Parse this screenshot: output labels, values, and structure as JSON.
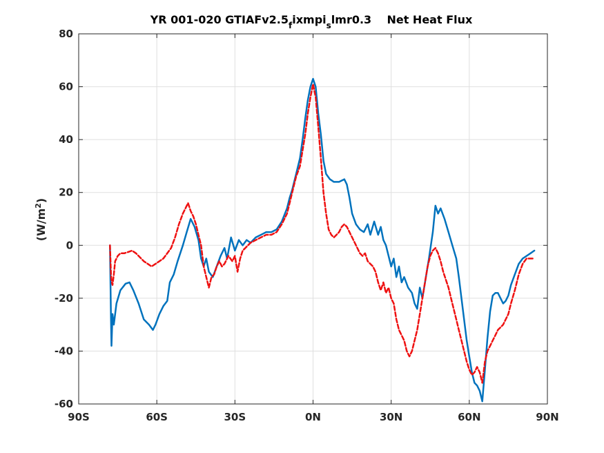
{
  "chart_data": {
    "type": "line",
    "title": {
      "prefix": "YR 001-020 GTIAFv2.5",
      "sub1": "f",
      "mid": "ixmpi",
      "sub2": "s",
      "suffix": "lmr0.3",
      "right": "Net Heat Flux"
    },
    "ylabel": {
      "main": "(W/m",
      "sup": "2",
      "close": ")"
    },
    "xlim": [
      -90,
      90
    ],
    "ylim": [
      -60,
      80
    ],
    "xticks": [
      {
        "value": -90,
        "label": "90S"
      },
      {
        "value": -60,
        "label": "60S"
      },
      {
        "value": -30,
        "label": "30S"
      },
      {
        "value": 0,
        "label": "0N"
      },
      {
        "value": 30,
        "label": "30N"
      },
      {
        "value": 60,
        "label": "60N"
      },
      {
        "value": 90,
        "label": "90N"
      }
    ],
    "yticks": [
      {
        "value": -60,
        "label": "-60"
      },
      {
        "value": -40,
        "label": "-40"
      },
      {
        "value": -20,
        "label": "-20"
      },
      {
        "value": 0,
        "label": "0"
      },
      {
        "value": 20,
        "label": "20"
      },
      {
        "value": 40,
        "label": "40"
      },
      {
        "value": 60,
        "label": "60"
      },
      {
        "value": 80,
        "label": "80"
      }
    ],
    "grid": true,
    "series": [
      {
        "color": "#0072BD",
        "style": "solid",
        "points": [
          [
            -78,
            0
          ],
          [
            -77.6,
            -28
          ],
          [
            -77.4,
            -38
          ],
          [
            -77,
            -26
          ],
          [
            -76.5,
            -30
          ],
          [
            -75.5,
            -22
          ],
          [
            -74,
            -17
          ],
          [
            -72,
            -14.5
          ],
          [
            -70.5,
            -14
          ],
          [
            -69,
            -17
          ],
          [
            -67,
            -22
          ],
          [
            -65,
            -28
          ],
          [
            -63,
            -30
          ],
          [
            -61.5,
            -32
          ],
          [
            -60.5,
            -30
          ],
          [
            -59,
            -26
          ],
          [
            -57.5,
            -23
          ],
          [
            -56,
            -21
          ],
          [
            -55,
            -14
          ],
          [
            -53.5,
            -11
          ],
          [
            -52,
            -6
          ],
          [
            -51,
            -3
          ],
          [
            -50,
            0
          ],
          [
            -48.5,
            5
          ],
          [
            -47,
            10
          ],
          [
            -45.5,
            7
          ],
          [
            -44,
            2
          ],
          [
            -43,
            -5
          ],
          [
            -42,
            -8
          ],
          [
            -41,
            -5
          ],
          [
            -40,
            -10
          ],
          [
            -38.5,
            -12
          ],
          [
            -37,
            -8
          ],
          [
            -35.5,
            -4
          ],
          [
            -34,
            -1
          ],
          [
            -33,
            -5
          ],
          [
            -31.5,
            3
          ],
          [
            -30,
            -2
          ],
          [
            -28.5,
            2
          ],
          [
            -27,
            0
          ],
          [
            -25.5,
            2
          ],
          [
            -24,
            1
          ],
          [
            -22,
            3
          ],
          [
            -20,
            4
          ],
          [
            -18,
            5
          ],
          [
            -16,
            5
          ],
          [
            -14,
            6
          ],
          [
            -12,
            9
          ],
          [
            -10,
            14
          ],
          [
            -9,
            18
          ],
          [
            -8,
            21
          ],
          [
            -6.5,
            27
          ],
          [
            -5,
            33
          ],
          [
            -4,
            40
          ],
          [
            -3,
            48
          ],
          [
            -2,
            55
          ],
          [
            -1,
            60
          ],
          [
            0,
            63
          ],
          [
            1,
            60
          ],
          [
            2,
            50
          ],
          [
            3,
            42
          ],
          [
            4,
            32
          ],
          [
            5,
            27
          ],
          [
            6.5,
            25
          ],
          [
            8,
            24
          ],
          [
            10,
            24
          ],
          [
            12,
            25
          ],
          [
            13,
            23
          ],
          [
            14,
            18
          ],
          [
            15,
            12
          ],
          [
            16.5,
            8
          ],
          [
            18,
            6
          ],
          [
            19.5,
            5
          ],
          [
            21,
            8
          ],
          [
            22,
            4
          ],
          [
            23.5,
            9
          ],
          [
            25,
            4
          ],
          [
            26,
            7
          ],
          [
            27,
            2
          ],
          [
            28,
            0
          ],
          [
            29,
            -4
          ],
          [
            30,
            -8
          ],
          [
            31,
            -5
          ],
          [
            32,
            -12
          ],
          [
            33,
            -8
          ],
          [
            34,
            -14
          ],
          [
            35,
            -12
          ],
          [
            36.5,
            -16
          ],
          [
            38,
            -18
          ],
          [
            39,
            -22
          ],
          [
            40,
            -24
          ],
          [
            41,
            -16
          ],
          [
            42,
            -20
          ],
          [
            43,
            -14
          ],
          [
            44.5,
            -5
          ],
          [
            46,
            5
          ],
          [
            47,
            15
          ],
          [
            48,
            12
          ],
          [
            49,
            14
          ],
          [
            50.5,
            10
          ],
          [
            52,
            5
          ],
          [
            53.5,
            0
          ],
          [
            55,
            -5
          ],
          [
            56,
            -12
          ],
          [
            57,
            -20
          ],
          [
            58,
            -28
          ],
          [
            59,
            -36
          ],
          [
            60,
            -42
          ],
          [
            61,
            -48
          ],
          [
            62,
            -52
          ],
          [
            63,
            -53
          ],
          [
            64,
            -55
          ],
          [
            65,
            -59
          ],
          [
            66,
            -47
          ],
          [
            67,
            -35
          ],
          [
            68,
            -25
          ],
          [
            69,
            -19
          ],
          [
            70,
            -18
          ],
          [
            71,
            -18
          ],
          [
            72,
            -20
          ],
          [
            73,
            -22
          ],
          [
            74,
            -21
          ],
          [
            75,
            -19
          ],
          [
            76,
            -15
          ],
          [
            77.5,
            -11
          ],
          [
            79,
            -7
          ],
          [
            80.5,
            -5
          ],
          [
            82,
            -4
          ],
          [
            83.5,
            -3
          ],
          [
            85,
            -2
          ]
        ]
      },
      {
        "color": "#EE1111",
        "style": "dashed",
        "points": [
          [
            -78,
            0
          ],
          [
            -77.6,
            -11
          ],
          [
            -77.3,
            -14
          ],
          [
            -77,
            -15
          ],
          [
            -76.5,
            -11
          ],
          [
            -76,
            -6
          ],
          [
            -75,
            -4
          ],
          [
            -74,
            -3
          ],
          [
            -72.5,
            -3
          ],
          [
            -71,
            -2.5
          ],
          [
            -69.5,
            -2
          ],
          [
            -68,
            -3
          ],
          [
            -66.5,
            -4.5
          ],
          [
            -65,
            -6
          ],
          [
            -63.5,
            -7
          ],
          [
            -62,
            -8
          ],
          [
            -60.5,
            -7
          ],
          [
            -59,
            -6
          ],
          [
            -57.5,
            -5
          ],
          [
            -56,
            -3
          ],
          [
            -54.5,
            -1
          ],
          [
            -53,
            3
          ],
          [
            -51.5,
            8
          ],
          [
            -50,
            12
          ],
          [
            -49,
            14
          ],
          [
            -48,
            16
          ],
          [
            -47,
            13
          ],
          [
            -46,
            11
          ],
          [
            -45,
            8
          ],
          [
            -44,
            4
          ],
          [
            -43,
            0
          ],
          [
            -42,
            -8
          ],
          [
            -41,
            -12
          ],
          [
            -40,
            -16
          ],
          [
            -39,
            -12
          ],
          [
            -38,
            -11
          ],
          [
            -37,
            -8
          ],
          [
            -36,
            -6
          ],
          [
            -35,
            -8
          ],
          [
            -34,
            -7
          ],
          [
            -32.5,
            -4
          ],
          [
            -31,
            -6
          ],
          [
            -30,
            -4
          ],
          [
            -29,
            -10
          ],
          [
            -28,
            -5
          ],
          [
            -27,
            -2
          ],
          [
            -26,
            -1
          ],
          [
            -24,
            1
          ],
          [
            -22,
            2
          ],
          [
            -20,
            3
          ],
          [
            -18,
            4
          ],
          [
            -16,
            4
          ],
          [
            -14,
            5
          ],
          [
            -12,
            8
          ],
          [
            -10,
            12
          ],
          [
            -9,
            16
          ],
          [
            -8,
            20
          ],
          [
            -6.5,
            26
          ],
          [
            -5,
            30
          ],
          [
            -4,
            36
          ],
          [
            -3,
            42
          ],
          [
            -2,
            50
          ],
          [
            -1,
            56
          ],
          [
            0,
            61
          ],
          [
            1,
            56
          ],
          [
            2,
            45
          ],
          [
            3,
            33
          ],
          [
            4,
            20
          ],
          [
            5,
            12
          ],
          [
            6,
            6
          ],
          [
            7,
            4
          ],
          [
            8,
            3
          ],
          [
            9,
            4
          ],
          [
            10,
            5
          ],
          [
            11,
            7
          ],
          [
            12,
            8
          ],
          [
            13,
            7
          ],
          [
            14,
            5
          ],
          [
            16,
            1
          ],
          [
            18,
            -3
          ],
          [
            19,
            -4
          ],
          [
            20,
            -3
          ],
          [
            21,
            -6
          ],
          [
            22,
            -7
          ],
          [
            23,
            -8
          ],
          [
            24,
            -10
          ],
          [
            25,
            -14
          ],
          [
            26,
            -17
          ],
          [
            27,
            -14
          ],
          [
            28,
            -18
          ],
          [
            29,
            -16
          ],
          [
            30,
            -20
          ],
          [
            31,
            -22
          ],
          [
            32,
            -28
          ],
          [
            33,
            -32
          ],
          [
            34,
            -34
          ],
          [
            35,
            -36
          ],
          [
            36,
            -40
          ],
          [
            37,
            -42
          ],
          [
            38,
            -40
          ],
          [
            39,
            -36
          ],
          [
            40,
            -32
          ],
          [
            41,
            -26
          ],
          [
            42,
            -20
          ],
          [
            43,
            -14
          ],
          [
            44,
            -8
          ],
          [
            45,
            -4
          ],
          [
            46,
            -2
          ],
          [
            47,
            -1
          ],
          [
            48,
            -3
          ],
          [
            49,
            -6
          ],
          [
            50,
            -10
          ],
          [
            51,
            -13
          ],
          [
            52,
            -16
          ],
          [
            53,
            -20
          ],
          [
            54,
            -24
          ],
          [
            55,
            -28
          ],
          [
            56,
            -32
          ],
          [
            57,
            -36
          ],
          [
            58,
            -40
          ],
          [
            59,
            -44
          ],
          [
            60,
            -47
          ],
          [
            61,
            -49
          ],
          [
            62,
            -48
          ],
          [
            63,
            -46
          ],
          [
            64,
            -48
          ],
          [
            65,
            -52
          ],
          [
            66,
            -44
          ],
          [
            67,
            -40
          ],
          [
            68,
            -38
          ],
          [
            69,
            -36
          ],
          [
            70,
            -34
          ],
          [
            71,
            -32
          ],
          [
            72,
            -31
          ],
          [
            73,
            -30
          ],
          [
            74,
            -28
          ],
          [
            75,
            -26
          ],
          [
            76,
            -22
          ],
          [
            77.5,
            -17
          ],
          [
            79,
            -11
          ],
          [
            80.5,
            -7
          ],
          [
            82,
            -5
          ],
          [
            83.5,
            -5
          ],
          [
            85,
            -5
          ]
        ]
      }
    ]
  }
}
